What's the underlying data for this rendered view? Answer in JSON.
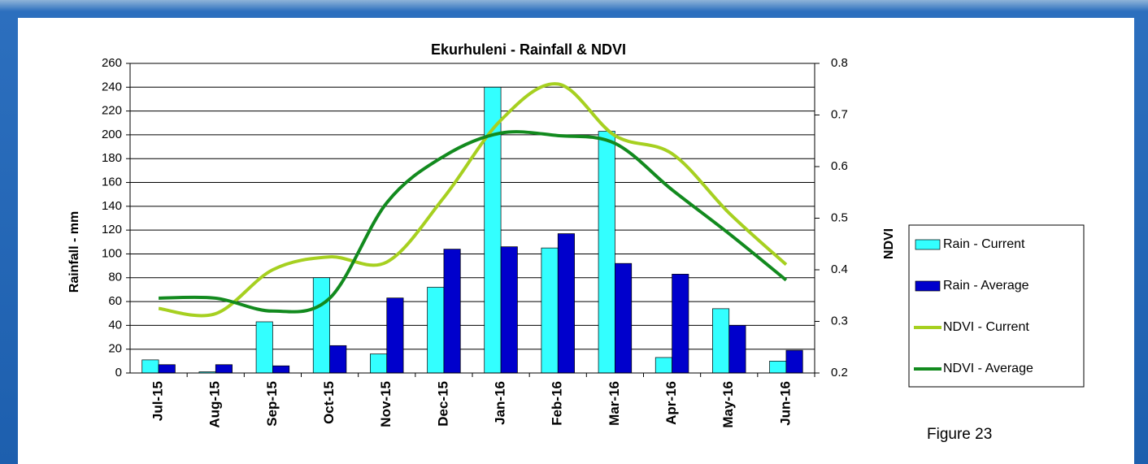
{
  "chart_data": {
    "type": "bar_line_combo",
    "title": "Ekurhuleni - Rainfall & NDVI",
    "y_label": "Rainfall - mm",
    "y2_label": "NDVI",
    "annotation": "Figure 23",
    "categories": [
      "Jul-15",
      "Aug-15",
      "Sep-15",
      "Oct-15",
      "Nov-15",
      "Dec-15",
      "Jan-16",
      "Feb-16",
      "Mar-16",
      "Apr-16",
      "May-16",
      "Jun-16"
    ],
    "series": [
      {
        "name": "Rain - Current",
        "type": "bar",
        "color": "#33ffff",
        "values": [
          11,
          1,
          43,
          80,
          16,
          72,
          240,
          105,
          203,
          13,
          54,
          10
        ]
      },
      {
        "name": "Rain - Average",
        "type": "bar",
        "color": "#0000cc",
        "values": [
          7,
          7,
          6,
          23,
          63,
          104,
          106,
          117,
          92,
          83,
          40,
          19
        ]
      },
      {
        "name": "NDVI - Current",
        "type": "line",
        "axis": "y2",
        "color": "#a6d020",
        "values": [
          0.325,
          0.315,
          0.4,
          0.425,
          0.415,
          0.54,
          0.69,
          0.76,
          0.66,
          0.625,
          0.51,
          0.41
        ]
      },
      {
        "name": "NDVI - Average",
        "type": "line",
        "axis": "y2",
        "color": "#128a1e",
        "values": [
          0.345,
          0.345,
          0.32,
          0.345,
          0.53,
          0.62,
          0.665,
          0.66,
          0.645,
          0.555,
          0.47,
          0.38
        ]
      }
    ],
    "ylim": [
      0,
      260
    ],
    "yticks": [
      0,
      20,
      40,
      60,
      80,
      100,
      120,
      140,
      160,
      180,
      200,
      220,
      240,
      260
    ],
    "y2lim": [
      0.2,
      0.8
    ],
    "y2ticks": [
      0.2,
      0.3,
      0.4,
      0.5,
      0.6,
      0.7,
      0.8
    ],
    "grid": true,
    "legend": "right"
  }
}
